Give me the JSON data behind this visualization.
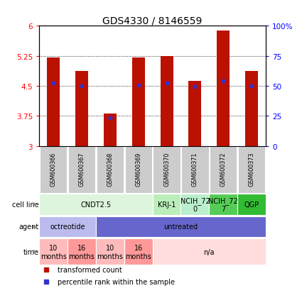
{
  "title": "GDS4330 / 8146559",
  "samples": [
    "GSM600366",
    "GSM600367",
    "GSM600368",
    "GSM600369",
    "GSM600370",
    "GSM600371",
    "GSM600372",
    "GSM600373"
  ],
  "bar_heights": [
    5.21,
    4.88,
    3.8,
    5.21,
    5.24,
    4.62,
    5.88,
    4.87
  ],
  "bar_base": 3.0,
  "percentile_values": [
    4.57,
    4.5,
    3.7,
    4.51,
    4.57,
    4.48,
    4.63,
    4.5
  ],
  "ylim": [
    3.0,
    6.0
  ],
  "yticks_left": [
    3,
    3.75,
    4.5,
    5.25,
    6
  ],
  "yticks_right_labels": [
    "0",
    "25",
    "50",
    "75",
    "100%"
  ],
  "bar_color": "#bb1100",
  "percentile_color": "#3333cc",
  "cell_line_row": {
    "label": "cell line",
    "groups": [
      {
        "text": "CNDT2.5",
        "span": [
          0,
          3
        ],
        "color": "#ddf5dd"
      },
      {
        "text": "KRJ-1",
        "span": [
          4,
          4
        ],
        "color": "#bbeebb"
      },
      {
        "text": "NCIH_72\n0",
        "span": [
          5,
          5
        ],
        "color": "#bbeecc"
      },
      {
        "text": "NCIH_72\n7",
        "span": [
          6,
          6
        ],
        "color": "#55cc55"
      },
      {
        "text": "QGP",
        "span": [
          7,
          7
        ],
        "color": "#33bb33"
      }
    ]
  },
  "agent_row": {
    "label": "agent",
    "groups": [
      {
        "text": "octreotide",
        "span": [
          0,
          1
        ],
        "color": "#bbbbee"
      },
      {
        "text": "untreated",
        "span": [
          2,
          7
        ],
        "color": "#6666cc"
      }
    ]
  },
  "time_row": {
    "label": "time",
    "groups": [
      {
        "text": "10\nmonths",
        "span": [
          0,
          0
        ],
        "color": "#ffbbbb"
      },
      {
        "text": "16\nmonths",
        "span": [
          1,
          1
        ],
        "color": "#ff9999"
      },
      {
        "text": "10\nmonths",
        "span": [
          2,
          2
        ],
        "color": "#ffbbbb"
      },
      {
        "text": "16\nmonths",
        "span": [
          3,
          3
        ],
        "color": "#ff9999"
      },
      {
        "text": "n/a",
        "span": [
          4,
          7
        ],
        "color": "#ffdddd"
      }
    ]
  },
  "legend_items": [
    {
      "label": "transformed count",
      "color": "#bb1100"
    },
    {
      "label": "percentile rank within the sample",
      "color": "#3333cc"
    }
  ]
}
